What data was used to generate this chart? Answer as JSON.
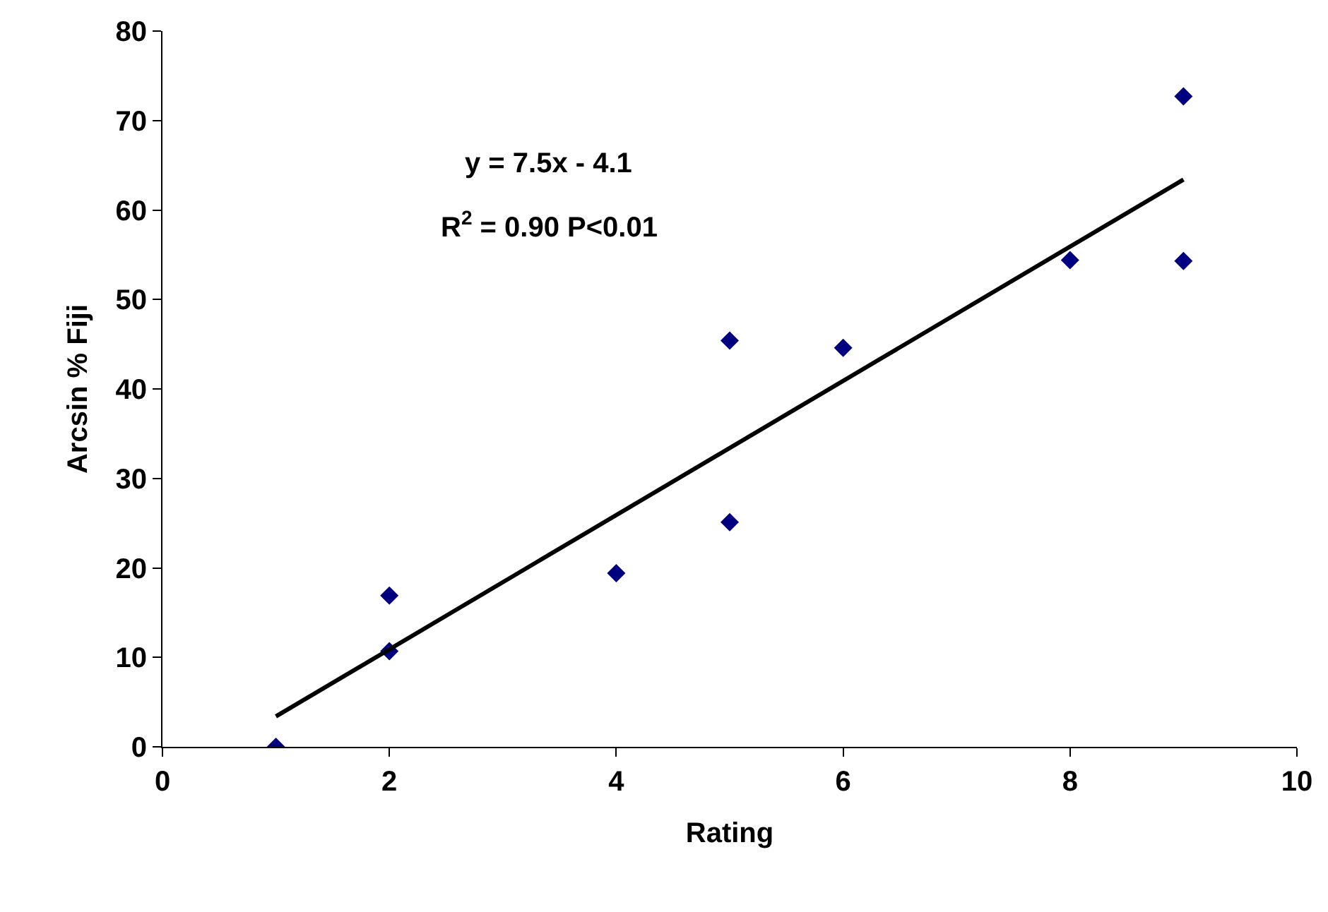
{
  "chart_data": {
    "type": "scatter",
    "xlabel": "Rating",
    "ylabel": "Arcsin % Fiji",
    "xlim": [
      0,
      10
    ],
    "xticks": [
      0,
      2,
      4,
      6,
      8,
      10
    ],
    "ylim": [
      0,
      80
    ],
    "yticks": [
      0,
      10,
      20,
      30,
      40,
      50,
      60,
      70,
      80
    ],
    "series": [
      {
        "color": "#000080",
        "marker": "diamond",
        "x": [
          1,
          2,
          2,
          4,
          5,
          5,
          6,
          8,
          9,
          9
        ],
        "values": [
          0,
          16.9,
          10.7,
          19.4,
          45.4,
          25.1,
          44.6,
          54.4,
          54.3,
          72.7
        ]
      },
      {
        "type": "line",
        "color": "#000000",
        "marker": "none",
        "line_style": "solid",
        "x": [
          1,
          9
        ],
        "values": [
          3.4,
          63.4
        ]
      }
    ],
    "annotations": [
      "y = 7.5x - 4.1",
      "R$^{2}$ = 0.90 P<0.01"
    ]
  }
}
